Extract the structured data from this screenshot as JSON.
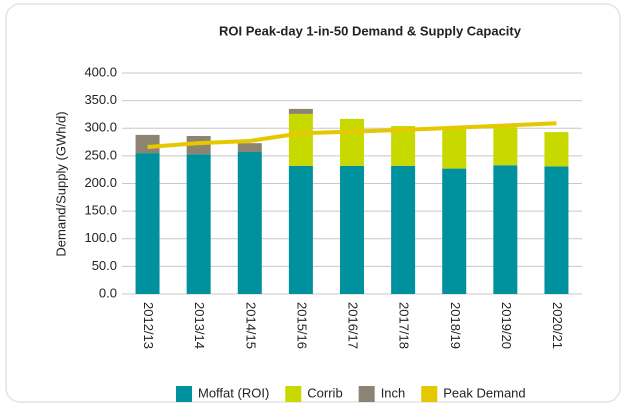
{
  "chart_data": {
    "type": "bar",
    "stacked": true,
    "title": "ROI Peak-day 1-in-50 Demand & Supply Capacity",
    "y_label": "Demand/Supply (GWh/d)",
    "categories": [
      "2012/13",
      "2013/14",
      "2014/15",
      "2015/16",
      "2016/17",
      "2017/18",
      "2018/19",
      "2019/20",
      "2020/21"
    ],
    "series": [
      {
        "name": "Moffat (ROI)",
        "color": "#00919e",
        "values": [
          255,
          253,
          257,
          232,
          232,
          232,
          227,
          233,
          231
        ]
      },
      {
        "name": "Corrib",
        "color": "#c8d900",
        "values": [
          0,
          0,
          0,
          94,
          85,
          72,
          73,
          69,
          62
        ]
      },
      {
        "name": "Inch",
        "color": "#8c8470",
        "values": [
          33,
          33,
          16,
          9,
          0,
          0,
          0,
          0,
          0
        ]
      },
      {
        "name": "Peak Demand",
        "type": "line",
        "color": "#e6c800",
        "values": [
          266,
          273,
          277,
          291,
          294,
          297,
          301,
          305,
          309
        ]
      }
    ],
    "ylim": [
      0,
      400
    ],
    "yticks": [
      {
        "value": 0,
        "label": "0.0"
      },
      {
        "value": 50,
        "label": "50.0"
      },
      {
        "value": 100,
        "label": "100.0"
      },
      {
        "value": 150,
        "label": "150.0"
      },
      {
        "value": 200,
        "label": "200.0"
      },
      {
        "value": 250,
        "label": "250.0"
      },
      {
        "value": 300,
        "label": "300.0"
      },
      {
        "value": 350,
        "label": "350.0"
      },
      {
        "value": 400,
        "label": "400.0"
      }
    ],
    "grid": true,
    "legend": "bottom"
  }
}
